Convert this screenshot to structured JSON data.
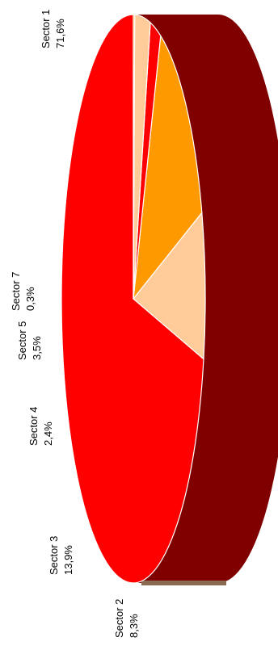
{
  "chart_data": {
    "type": "pie",
    "style": "3d",
    "categories": [
      "Sector 1",
      "Sector 2",
      "Sector 3",
      "Sector 4",
      "Sector 5",
      "Sector 7"
    ],
    "values": [
      71.6,
      8.3,
      13.9,
      2.4,
      3.5,
      0.3
    ],
    "value_labels": [
      "71,6%",
      "8,3%",
      "13,9%",
      "2,4%",
      "3,5%",
      "0,3%"
    ],
    "colors": [
      "#ff0000",
      "#ffcc99",
      "#ff9900",
      "#ff0000",
      "#ffcc99",
      "#ff9900"
    ],
    "side_color": "#800000",
    "orientation": "rotated-90",
    "legend": false
  }
}
